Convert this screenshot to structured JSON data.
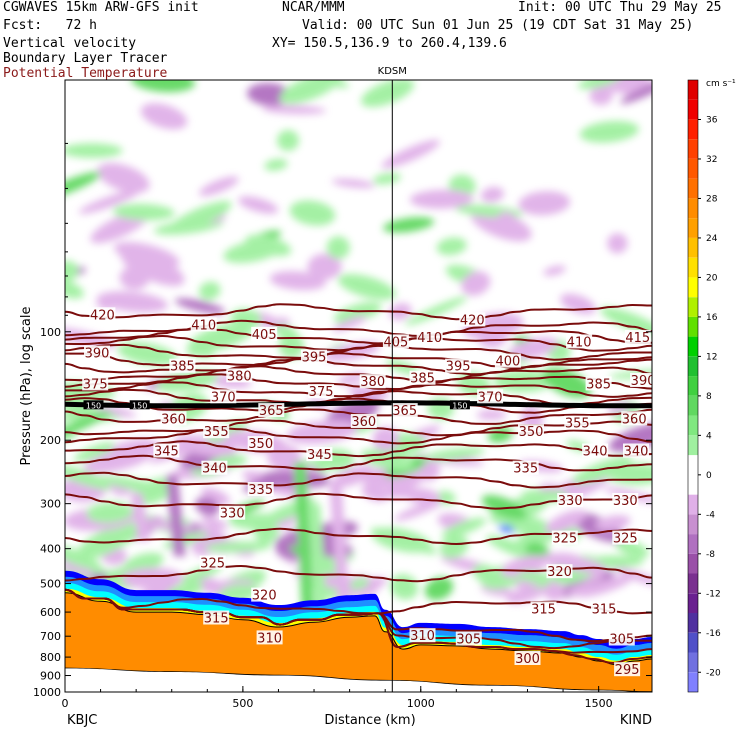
{
  "header": {
    "model": "CGWAVES 15km ARW-GFS init",
    "org": "NCAR/MMM",
    "init": "Init: 00 UTC Thu 29 May 25",
    "fcst": "Fcst:   72 h",
    "valid": "Valid: 00 UTC Sun 01 Jun 25 (19 CDT Sat 31 May 25)",
    "xy": "XY= 150.5,136.9 to 260.4,139.6",
    "fields": [
      "Vertical velocity",
      "Boundary Layer Tracer",
      "Potential Temperature"
    ]
  },
  "colors": {
    "theta_contour": "#7a0c0c",
    "terrain": "#ff8c00",
    "bl_edge": [
      "#ffff00",
      "#00ffff",
      "#1e90ff",
      "#0000ff"
    ],
    "ascent": "#90ee90",
    "descent": "#dda0dd"
  },
  "chart_data": {
    "type": "heatmap",
    "station_marker": "KDSM",
    "station_distance_km": 920,
    "xlabel": "Distance (km)",
    "ylabel": "Pressure (hPa), log scale",
    "xlim": [
      0,
      1650
    ],
    "ylim": [
      1000,
      20
    ],
    "y_scale": "log",
    "x_ticks": [
      0,
      500,
      1000,
      1500
    ],
    "y_ticks": [
      100,
      200,
      300,
      400,
      500,
      600,
      700,
      800,
      900,
      1000
    ],
    "x_tick_labels": [
      "0",
      "500",
      "1000",
      "1500"
    ],
    "y_tick_labels": [
      "100",
      "200",
      "300",
      "400",
      "500",
      "600",
      "700",
      "800",
      "900",
      "1000"
    ],
    "endpoints": {
      "left": "KBJC",
      "right": "KIND"
    },
    "colorbar": {
      "units": "cm s⁻¹",
      "levels": [
        -22,
        -20,
        -18,
        -16,
        -14,
        -12,
        -10,
        -8,
        -6,
        -4,
        -2,
        2,
        4,
        6,
        8,
        10,
        12,
        14,
        16,
        18,
        20,
        22,
        24,
        26,
        28,
        30,
        32,
        34,
        36,
        38,
        40
      ],
      "tick_labels": [
        "-20",
        "-16",
        "-12",
        "-8",
        "-4",
        "0",
        "4",
        "8",
        "12",
        "16",
        "20",
        "24",
        "28",
        "32",
        "36"
      ],
      "tick_values": [
        -20,
        -16,
        -12,
        -8,
        -4,
        0,
        4,
        8,
        12,
        16,
        20,
        24,
        28,
        32,
        36
      ],
      "colors": [
        "#8080ff",
        "#7070e0",
        "#5050c8",
        "#5030a0",
        "#6a2090",
        "#7a3090",
        "#9a50a8",
        "#b070c0",
        "#c890d0",
        "#e0b0e8",
        "#ffffff",
        "#a0f0a0",
        "#80e880",
        "#60d860",
        "#40d040",
        "#20c030",
        "#00d000",
        "#60e000",
        "#b0f000",
        "#ffff00",
        "#ffe000",
        "#ffc000",
        "#ffa000",
        "#ff8c00",
        "#ff7000",
        "#ff5800",
        "#ff4000",
        "#ff2000",
        "#f00000",
        "#e00000"
      ]
    },
    "theta_contours": [
      {
        "label": "420",
        "p": 88
      },
      {
        "label": "415",
        "p": 98
      },
      {
        "label": "410",
        "p": 103
      },
      {
        "label": "405",
        "p": 108
      },
      {
        "label": "400",
        "p": 114
      },
      {
        "label": "395",
        "p": 120
      },
      {
        "label": "390",
        "p": 125
      },
      {
        "label": "385",
        "p": 131
      },
      {
        "label": "380",
        "p": 138
      },
      {
        "label": "375",
        "p": 145
      },
      {
        "label": "370",
        "p": 152
      },
      {
        "label": "365",
        "p": 160
      },
      {
        "label": "360",
        "p": 172
      },
      {
        "label": "355",
        "p": 185
      },
      {
        "label": "350",
        "p": 195
      },
      {
        "label": "345",
        "p": 212
      },
      {
        "label": "340",
        "p": 232
      },
      {
        "label": "335",
        "p": 258
      },
      {
        "label": "330",
        "p": 295
      },
      {
        "label": "325",
        "p": 370
      },
      {
        "label": "320",
        "p": 470
      },
      {
        "label": "315",
        "p": 580
      },
      {
        "label": "310",
        "p": 690
      },
      {
        "label": "305",
        "p": 720
      },
      {
        "label": "300",
        "p": 780
      },
      {
        "label": "295",
        "p": 870
      }
    ],
    "theta_labels": [
      {
        "t": "420",
        "x": 105,
        "p": 90
      },
      {
        "t": "410",
        "x": 390,
        "p": 96
      },
      {
        "t": "420",
        "x": 1145,
        "p": 93
      },
      {
        "t": "390",
        "x": 90,
        "p": 115
      },
      {
        "t": "405",
        "x": 560,
        "p": 102
      },
      {
        "t": "405",
        "x": 930,
        "p": 107
      },
      {
        "t": "410",
        "x": 1025,
        "p": 104
      },
      {
        "t": "410",
        "x": 1445,
        "p": 107
      },
      {
        "t": "415",
        "x": 1610,
        "p": 104
      },
      {
        "t": "385",
        "x": 330,
        "p": 125
      },
      {
        "t": "395",
        "x": 700,
        "p": 118
      },
      {
        "t": "395",
        "x": 1105,
        "p": 125
      },
      {
        "t": "400",
        "x": 1245,
        "p": 121
      },
      {
        "t": "375",
        "x": 85,
        "p": 140
      },
      {
        "t": "380",
        "x": 490,
        "p": 133
      },
      {
        "t": "380",
        "x": 865,
        "p": 138
      },
      {
        "t": "385",
        "x": 1005,
        "p": 135
      },
      {
        "t": "385",
        "x": 1500,
        "p": 140
      },
      {
        "t": "390",
        "x": 1625,
        "p": 137
      },
      {
        "t": "370",
        "x": 445,
        "p": 152
      },
      {
        "t": "375",
        "x": 720,
        "p": 147
      },
      {
        "t": "370",
        "x": 1195,
        "p": 152
      },
      {
        "t": "365",
        "x": 580,
        "p": 166
      },
      {
        "t": "365",
        "x": 955,
        "p": 166
      },
      {
        "t": "360",
        "x": 305,
        "p": 175
      },
      {
        "t": "360",
        "x": 840,
        "p": 178
      },
      {
        "t": "355",
        "x": 1440,
        "p": 180
      },
      {
        "t": "360",
        "x": 1600,
        "p": 175
      },
      {
        "t": "355",
        "x": 425,
        "p": 190
      },
      {
        "t": "350",
        "x": 550,
        "p": 205
      },
      {
        "t": "350",
        "x": 1310,
        "p": 190
      },
      {
        "t": "345",
        "x": 285,
        "p": 215
      },
      {
        "t": "345",
        "x": 715,
        "p": 220
      },
      {
        "t": "340",
        "x": 420,
        "p": 240
      },
      {
        "t": "340",
        "x": 1490,
        "p": 215
      },
      {
        "t": "340",
        "x": 1605,
        "p": 215
      },
      {
        "t": "335",
        "x": 550,
        "p": 275
      },
      {
        "t": "335",
        "x": 1295,
        "p": 240
      },
      {
        "t": "330",
        "x": 470,
        "p": 320
      },
      {
        "t": "330",
        "x": 1420,
        "p": 295
      },
      {
        "t": "330",
        "x": 1575,
        "p": 295
      },
      {
        "t": "325",
        "x": 415,
        "p": 440
      },
      {
        "t": "325",
        "x": 1405,
        "p": 375
      },
      {
        "t": "325",
        "x": 1575,
        "p": 375
      },
      {
        "t": "320",
        "x": 560,
        "p": 540
      },
      {
        "t": "320",
        "x": 1390,
        "p": 465
      },
      {
        "t": "315",
        "x": 425,
        "p": 625
      },
      {
        "t": "315",
        "x": 1345,
        "p": 590
      },
      {
        "t": "315",
        "x": 1515,
        "p": 590
      },
      {
        "t": "310",
        "x": 575,
        "p": 710
      },
      {
        "t": "310",
        "x": 1005,
        "p": 700
      },
      {
        "t": "305",
        "x": 1135,
        "p": 715
      },
      {
        "t": "305",
        "x": 1565,
        "p": 715
      },
      {
        "t": "300",
        "x": 1300,
        "p": 810
      },
      {
        "t": "295",
        "x": 1580,
        "p": 870
      }
    ],
    "tracer_labels": [
      {
        "t": "150",
        "x": 80,
        "p": 160
      },
      {
        "t": "150",
        "x": 210,
        "p": 160
      },
      {
        "t": "150",
        "x": 1110,
        "p": 160
      }
    ],
    "terrain_surface": [
      {
        "x": 0,
        "p": 530
      },
      {
        "x": 100,
        "p": 560
      },
      {
        "x": 200,
        "p": 600
      },
      {
        "x": 300,
        "p": 600
      },
      {
        "x": 400,
        "p": 610
      },
      {
        "x": 500,
        "p": 630
      },
      {
        "x": 600,
        "p": 660
      },
      {
        "x": 700,
        "p": 640
      },
      {
        "x": 800,
        "p": 620
      },
      {
        "x": 870,
        "p": 615
      },
      {
        "x": 900,
        "p": 680
      },
      {
        "x": 950,
        "p": 760
      },
      {
        "x": 1000,
        "p": 740
      },
      {
        "x": 1100,
        "p": 745
      },
      {
        "x": 1200,
        "p": 760
      },
      {
        "x": 1300,
        "p": 770
      },
      {
        "x": 1400,
        "p": 780
      },
      {
        "x": 1450,
        "p": 800
      },
      {
        "x": 1500,
        "p": 820
      },
      {
        "x": 1550,
        "p": 840
      },
      {
        "x": 1600,
        "p": 820
      },
      {
        "x": 1650,
        "p": 810
      }
    ],
    "ground_line": [
      {
        "x": 0,
        "p": 860
      },
      {
        "x": 300,
        "p": 880
      },
      {
        "x": 600,
        "p": 900
      },
      {
        "x": 900,
        "p": 930
      },
      {
        "x": 1200,
        "p": 960
      },
      {
        "x": 1500,
        "p": 990
      },
      {
        "x": 1650,
        "p": 1000
      }
    ]
  }
}
